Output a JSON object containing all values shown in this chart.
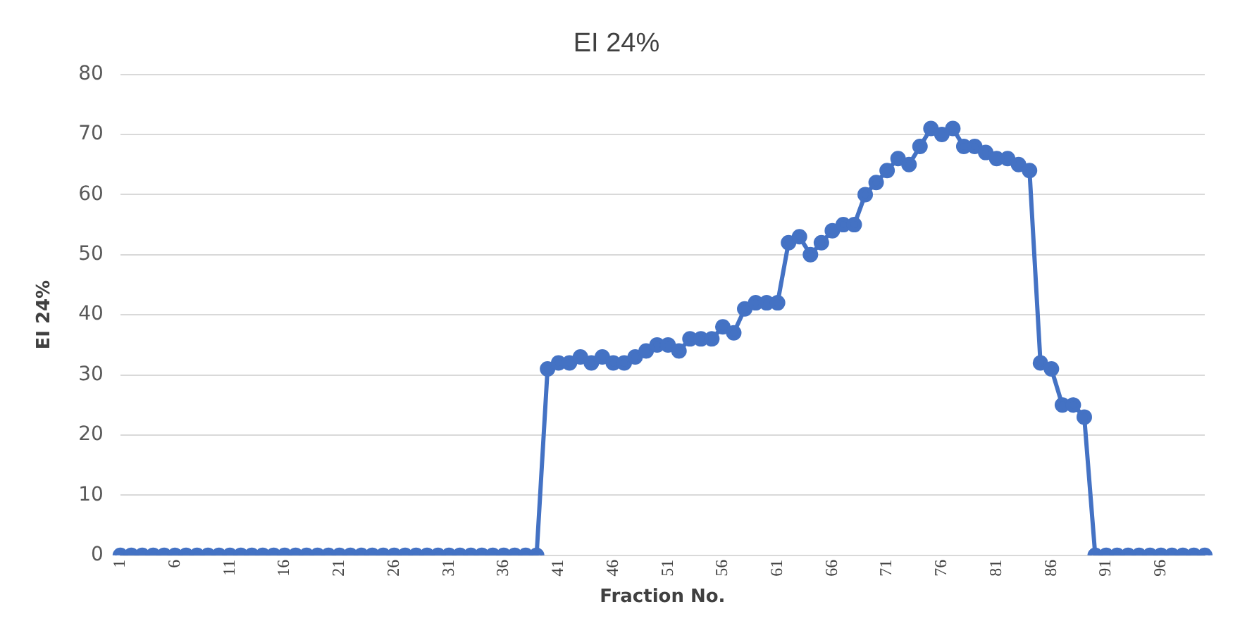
{
  "chart_data": {
    "type": "line",
    "title": "EI 24%",
    "xlabel": "Fraction No.",
    "ylabel": "EI 24%",
    "categories": [
      "1",
      null,
      null,
      null,
      null,
      "6",
      null,
      null,
      null,
      null,
      "11",
      null,
      null,
      null,
      null,
      "16",
      null,
      null,
      null,
      null,
      "21",
      null,
      null,
      null,
      null,
      "26",
      null,
      null,
      null,
      null,
      "31",
      null,
      null,
      null,
      null,
      "36",
      null,
      null,
      null,
      null,
      "41",
      null,
      null,
      null,
      null,
      "46",
      null,
      null,
      null,
      null,
      "51",
      null,
      null,
      null,
      null,
      "56",
      null,
      null,
      null,
      null,
      "61",
      null,
      null,
      null,
      null,
      "66",
      null,
      null,
      null,
      null,
      "71",
      null,
      null,
      null,
      null,
      "76",
      null,
      null,
      null,
      null,
      "81",
      null,
      null,
      null,
      null,
      "86",
      null,
      null,
      null,
      null,
      "91",
      null,
      null,
      null,
      null,
      "96",
      null,
      null,
      null,
      null
    ],
    "series": [
      {
        "color": "#4472c4",
        "values": [
          0,
          0,
          0,
          0,
          0,
          0,
          0,
          0,
          0,
          0,
          0,
          0,
          0,
          0,
          0,
          0,
          0,
          0,
          0,
          0,
          0,
          0,
          0,
          0,
          0,
          0,
          0,
          0,
          0,
          0,
          0,
          0,
          0,
          0,
          0,
          0,
          0,
          0,
          0,
          31,
          32,
          32,
          33,
          32,
          33,
          32,
          32,
          33,
          34,
          35,
          35,
          34,
          36,
          36,
          36,
          38,
          37,
          41,
          42,
          42,
          42,
          52,
          53,
          50,
          52,
          54,
          55,
          55,
          60,
          62,
          64,
          66,
          65,
          68,
          71,
          70,
          71,
          68,
          68,
          67,
          66,
          66,
          65,
          64,
          32,
          31,
          25,
          25,
          23,
          0,
          0,
          0,
          0,
          0,
          0,
          0,
          0,
          0,
          0,
          0
        ]
      }
    ],
    "ylim": [
      0,
      80
    ],
    "yticks": [
      0,
      10,
      20,
      30,
      40,
      50,
      60,
      70,
      80
    ],
    "grid": "y",
    "legend": false,
    "marker": "circle",
    "line_style": "solid"
  }
}
